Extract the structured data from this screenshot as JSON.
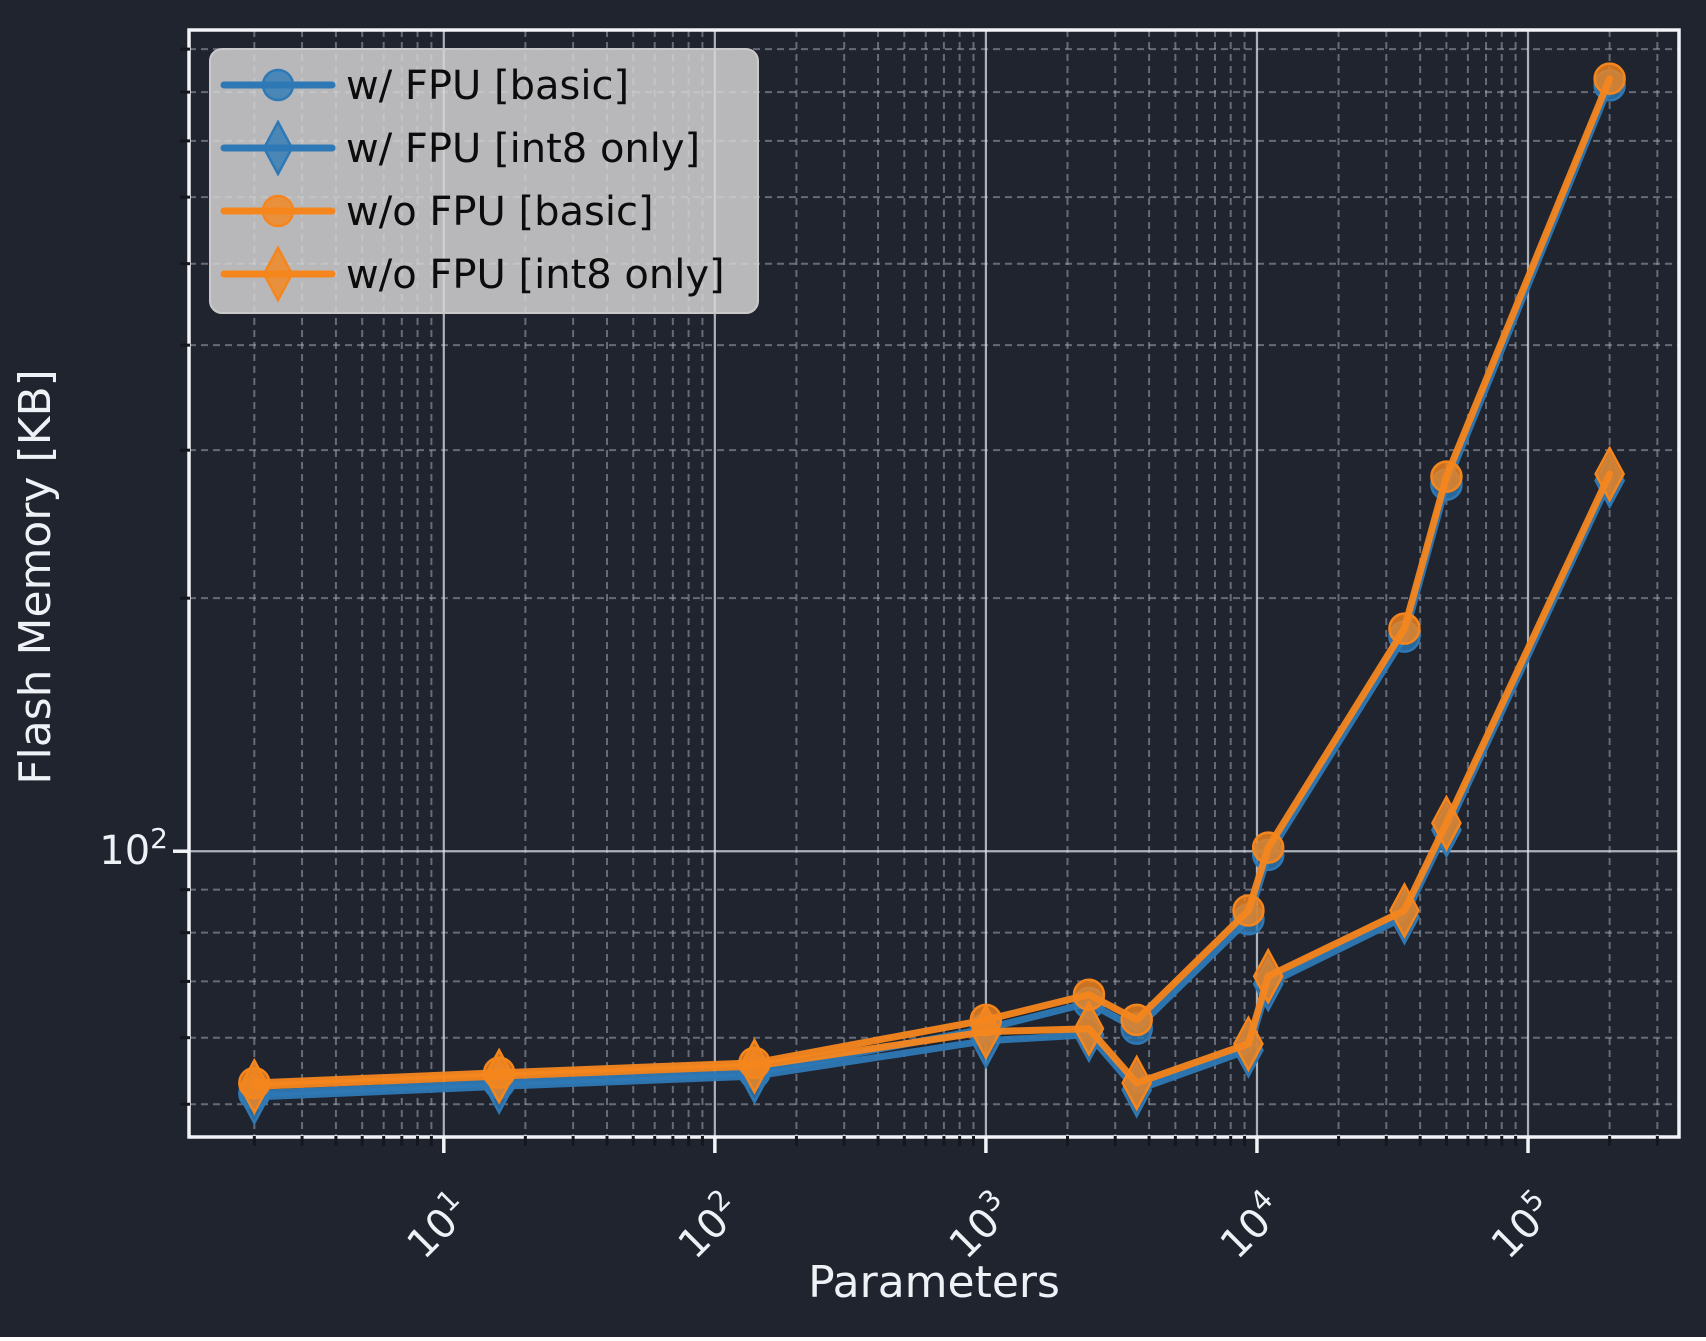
{
  "chart_data": {
    "type": "line",
    "title": "",
    "xlabel": "Parameters",
    "ylabel": "Flash Memory [KB]",
    "x_scale": "log",
    "y_scale": "log",
    "x_range_log10": [
      0.06,
      5.557
    ],
    "y_range_log10": [
      1.66,
      2.977
    ],
    "x_major_tick_exponents": [
      1,
      2,
      3,
      4,
      5
    ],
    "y_major_tick_exponents": [
      2
    ],
    "tick_label_base": "10",
    "grid": {
      "major": true,
      "minor": true
    },
    "legend_position": "upper left",
    "x": [
      2,
      16,
      140,
      1000,
      2400,
      3600,
      9300,
      11000,
      35000,
      50000,
      200000
    ],
    "series": [
      {
        "name": "w/ FPU [basic]",
        "color": "#2e79b5",
        "marker": "circle",
        "values": [
          51.5,
          53,
          54.5,
          61.5,
          66,
          61.5,
          83,
          99,
          180,
          273,
          815
        ]
      },
      {
        "name": "w/ FPU [int8 only]",
        "color": "#2e79b5",
        "marker": "diamond",
        "values": [
          51,
          52.5,
          54,
          59.5,
          60.5,
          52,
          58,
          69.5,
          83.5,
          106,
          276
        ]
      },
      {
        "name": "w/o FPU [basic]",
        "color": "#f5861d",
        "marker": "circle",
        "values": [
          53,
          54.5,
          56,
          63,
          67.5,
          63,
          85,
          101,
          184,
          279,
          830
        ]
      },
      {
        "name": "w/o FPU [int8 only]",
        "color": "#f5861d",
        "marker": "diamond",
        "values": [
          52.5,
          54,
          55.5,
          61,
          61.5,
          53,
          59,
          71,
          85,
          108,
          281
        ]
      }
    ]
  },
  "colors": {
    "figure_bg": "#20242e",
    "text": "#eef1f6",
    "spine": "#f2f4f8",
    "grid_major": "#dbe0ea",
    "grid_minor": "#aab1bf",
    "tick_minor": "#14171e",
    "legend_bg": "#d5d5d5",
    "legend_border": "#c9c9c9",
    "legend_text": "#0c0c0c",
    "blue": "#2e79b5",
    "orange": "#f5861d"
  }
}
